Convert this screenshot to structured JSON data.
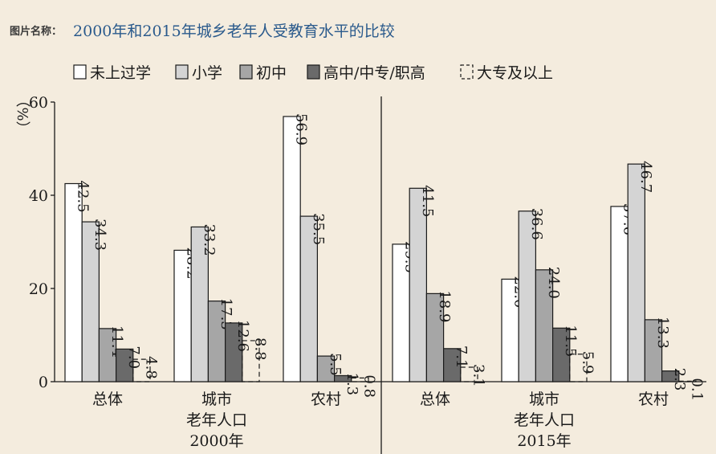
{
  "figure_label": "图片名称：",
  "title": "2000年和2015年城乡老年人受教育水平的比较",
  "colors": {
    "background": "#f4ecde",
    "title": "#2a5a8c",
    "series": [
      "#ffffff",
      "#d4d4d4",
      "#a6a6a6",
      "#6a6a6a",
      "none"
    ]
  },
  "chart_data": {
    "type": "bar",
    "title": "2000年和2015年城乡老年人受教育水平的比较",
    "ylabel": "（%）",
    "ylim": [
      0,
      60
    ],
    "yticks": [
      "0",
      "20",
      "40",
      "60"
    ],
    "grid": false,
    "legend_position": "top",
    "groups": [
      {
        "label": "2000年",
        "categories": [
          "总体",
          "城市\n老年人口",
          "农村"
        ]
      },
      {
        "label": "2015年",
        "categories": [
          "总体",
          "城市\n老年人口",
          "农村"
        ]
      }
    ],
    "categories": [
      "总体",
      "城市老年人口",
      "农村",
      "总体",
      "城市老年人口",
      "农村"
    ],
    "series": [
      {
        "name": "未上过学",
        "values": [
          42.5,
          28.2,
          56.9,
          29.5,
          22.0,
          37.6
        ],
        "labels": [
          "42.5",
          "28.2",
          "56.9",
          "29.5",
          "22.0",
          "37.6"
        ]
      },
      {
        "name": "小学",
        "values": [
          34.3,
          33.2,
          35.5,
          41.5,
          36.6,
          46.7
        ],
        "labels": [
          "34.3",
          "33.2",
          "35.5",
          "41.5",
          "36.6",
          "46.7"
        ]
      },
      {
        "name": "初中",
        "values": [
          11.4,
          17.3,
          5.5,
          18.9,
          24.0,
          13.3
        ],
        "labels": [
          "11.4",
          "17.3",
          "5.5",
          "18.9",
          "24.0",
          "13.3"
        ]
      },
      {
        "name": "高中/中专/职高",
        "values": [
          7.0,
          12.6,
          1.3,
          7.1,
          11.5,
          2.3
        ],
        "labels": [
          "7.0",
          "12.6",
          "1.3",
          "7.1",
          "11.5",
          "2.3"
        ]
      },
      {
        "name": "大专及以上",
        "values": [
          4.8,
          8.8,
          0.8,
          3.1,
          5.9,
          0.1
        ],
        "labels": [
          "4.8",
          "8.8",
          "0.8",
          "3.1",
          "5.9",
          "0.1"
        ]
      }
    ]
  }
}
